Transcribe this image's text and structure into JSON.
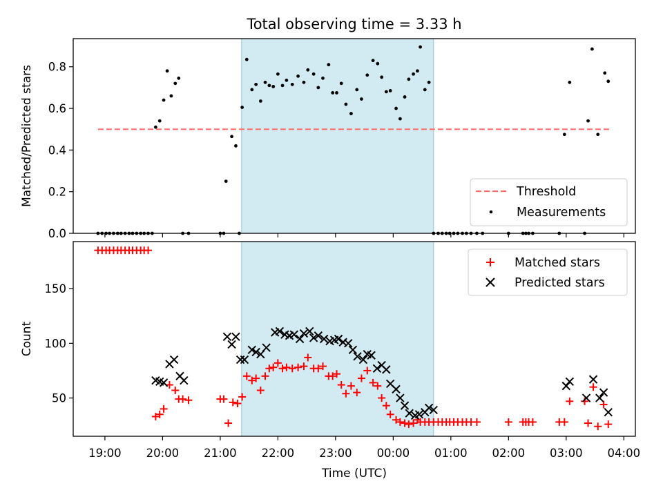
{
  "figure": {
    "title": "Total observing time = 3.33 h",
    "xlabel": "Time (UTC)"
  },
  "colors": {
    "shade": "#add8e6",
    "threshold": "#ff6b6b",
    "matched": "#ff0000",
    "predicted": "#000000",
    "measurement": "#000000"
  },
  "chart_data": [
    {
      "type": "scatter",
      "panel": "top",
      "ylabel": "Matched/Predicted stars",
      "xlim": [
        18.45,
        28.2
      ],
      "ylim": [
        0,
        0.935
      ],
      "x_ticks": [
        19,
        20,
        21,
        22,
        23,
        24,
        25,
        26,
        27,
        28
      ],
      "x_ticklabels": [
        "19:00",
        "20:00",
        "21:00",
        "22:00",
        "23:00",
        "00:00",
        "01:00",
        "02:00",
        "03:00",
        "04:00"
      ],
      "y_ticks": [
        0.0,
        0.2,
        0.4,
        0.6,
        0.8
      ],
      "y_ticklabels": [
        "0.0",
        "0.2",
        "0.4",
        "0.6",
        "0.8"
      ],
      "shaded_span": [
        21.37,
        24.7
      ],
      "threshold": {
        "name": "Threshold",
        "y": 0.5,
        "x_range": [
          18.88,
          27.75
        ]
      },
      "legend": {
        "location": "lower right",
        "entries": [
          "Threshold",
          "Measurements"
        ]
      },
      "series": [
        {
          "name": "Measurements",
          "x": [
            18.88,
            18.95,
            19.02,
            19.08,
            19.15,
            19.22,
            19.28,
            19.35,
            19.42,
            19.48,
            19.55,
            19.62,
            19.68,
            19.75,
            19.82,
            19.88,
            19.95,
            20.02,
            20.08,
            20.15,
            20.22,
            20.28,
            20.35,
            20.45,
            21.0,
            21.06,
            21.1,
            21.2,
            21.27,
            21.33,
            21.38,
            21.46,
            21.55,
            21.62,
            21.7,
            21.78,
            21.85,
            21.92,
            22.0,
            22.08,
            22.15,
            22.25,
            22.35,
            22.45,
            22.52,
            22.62,
            22.7,
            22.78,
            22.88,
            22.95,
            23.02,
            23.1,
            23.18,
            23.27,
            23.37,
            23.45,
            23.55,
            23.65,
            23.73,
            23.8,
            23.88,
            23.95,
            24.05,
            24.12,
            24.2,
            24.27,
            24.35,
            24.42,
            24.47,
            24.55,
            24.62,
            24.7,
            24.78,
            24.85,
            24.92,
            24.98,
            25.05,
            25.12,
            25.2,
            25.27,
            25.35,
            25.45,
            25.55,
            26.0,
            26.25,
            26.3,
            26.35,
            26.42,
            26.88,
            26.97,
            27.06,
            27.32,
            27.38,
            27.45,
            27.55,
            27.67,
            27.73
          ],
          "y": [
            0,
            0,
            0,
            0,
            0,
            0,
            0,
            0,
            0,
            0,
            0,
            0,
            0,
            0,
            0,
            0.51,
            0.54,
            0.64,
            0.78,
            0.66,
            0.72,
            0.745,
            0,
            0,
            0,
            0,
            0.25,
            0.465,
            0.42,
            0,
            0.605,
            0.835,
            0.69,
            0.715,
            0.635,
            0.725,
            0.71,
            0.705,
            0.765,
            0.71,
            0.735,
            0.715,
            0.755,
            0.725,
            0.785,
            0.765,
            0.7,
            0.745,
            0.81,
            0.675,
            0.675,
            0.72,
            0.62,
            0.575,
            0.69,
            0.645,
            0.76,
            0.83,
            0.815,
            0.75,
            0.68,
            0.685,
            0.6,
            0.55,
            0.655,
            0.74,
            0.765,
            0.78,
            0.895,
            0.69,
            0.725,
            0,
            0,
            0,
            0,
            0,
            0,
            0,
            0,
            0,
            0,
            0,
            0,
            0,
            0,
            0,
            0,
            0,
            0,
            0.475,
            0.725,
            0,
            0.54,
            0.885,
            0.475,
            0.77,
            0.73
          ]
        }
      ]
    },
    {
      "type": "scatter",
      "panel": "bottom",
      "ylabel": "Count",
      "xlim": [
        18.45,
        28.2
      ],
      "ylim": [
        15,
        193
      ],
      "x_ticks": [
        19,
        20,
        21,
        22,
        23,
        24,
        25,
        26,
        27,
        28
      ],
      "x_ticklabels": [
        "19:00",
        "20:00",
        "21:00",
        "22:00",
        "23:00",
        "00:00",
        "01:00",
        "02:00",
        "03:00",
        "04:00"
      ],
      "y_ticks": [
        50,
        100,
        150
      ],
      "y_ticklabels": [
        "50",
        "100",
        "150"
      ],
      "shaded_span": [
        21.37,
        24.7
      ],
      "legend": {
        "location": "upper right",
        "entries": [
          "Matched stars",
          "Predicted stars"
        ]
      },
      "series": [
        {
          "name": "Matched stars",
          "marker": "+",
          "x": [
            18.88,
            18.95,
            19.02,
            19.08,
            19.15,
            19.22,
            19.28,
            19.35,
            19.42,
            19.48,
            19.55,
            19.62,
            19.68,
            19.75,
            19.88,
            19.95,
            20.02,
            20.12,
            20.22,
            20.28,
            20.35,
            20.45,
            21.0,
            21.06,
            21.14,
            21.22,
            21.3,
            21.38,
            21.46,
            21.55,
            21.62,
            21.7,
            21.78,
            21.85,
            21.92,
            22.0,
            22.08,
            22.15,
            22.25,
            22.35,
            22.45,
            22.52,
            22.62,
            22.7,
            22.78,
            22.88,
            22.95,
            23.02,
            23.1,
            23.18,
            23.27,
            23.37,
            23.45,
            23.55,
            23.65,
            23.73,
            23.8,
            23.88,
            23.95,
            24.05,
            24.12,
            24.2,
            24.27,
            24.35,
            24.42,
            24.47,
            24.55,
            24.62,
            24.7,
            24.78,
            24.85,
            24.92,
            24.98,
            25.05,
            25.12,
            25.2,
            25.27,
            25.35,
            25.45,
            26.0,
            26.25,
            26.3,
            26.35,
            26.42,
            26.88,
            26.97,
            27.06,
            27.32,
            27.38,
            27.47,
            27.55,
            27.65,
            27.73
          ],
          "y": [
            185,
            185,
            185,
            185,
            185,
            185,
            185,
            185,
            185,
            185,
            185,
            185,
            185,
            185,
            33,
            35,
            40,
            62,
            57,
            49,
            49,
            48,
            49,
            49,
            27,
            46,
            45,
            51,
            70,
            66,
            68,
            57,
            70,
            77,
            78,
            82,
            77,
            78,
            77,
            78,
            79,
            87,
            77,
            77,
            79,
            70,
            70,
            72,
            62,
            54,
            61,
            55,
            68,
            75,
            64,
            61,
            50,
            43,
            35,
            30,
            28,
            27,
            26,
            27,
            30,
            28,
            28,
            28,
            28,
            28,
            28,
            28,
            28,
            28,
            28,
            28,
            28,
            28,
            28,
            28,
            28,
            28,
            28,
            28,
            28,
            28,
            47,
            47,
            27,
            60,
            24,
            44,
            26
          ]
        },
        {
          "name": "Predicted stars",
          "marker": "x",
          "x": [
            19.88,
            19.95,
            20.02,
            20.12,
            20.2,
            20.3,
            20.37,
            21.12,
            21.2,
            21.27,
            21.35,
            21.42,
            21.55,
            21.62,
            21.7,
            21.8,
            21.95,
            22.03,
            22.12,
            22.2,
            22.28,
            22.38,
            22.45,
            22.55,
            22.62,
            22.7,
            22.8,
            22.9,
            22.98,
            23.05,
            23.13,
            23.22,
            23.3,
            23.38,
            23.48,
            23.55,
            23.62,
            23.72,
            23.8,
            23.88,
            23.95,
            24.05,
            24.12,
            24.2,
            24.28,
            24.38,
            24.45,
            24.55,
            24.62,
            24.7,
            27.0,
            27.06,
            27.35,
            27.47,
            27.58,
            27.65,
            27.73
          ],
          "y": [
            66,
            65,
            64,
            81,
            85,
            70,
            66,
            106,
            99,
            106,
            85,
            85,
            94,
            92,
            90,
            96,
            110,
            111,
            108,
            107,
            108,
            104,
            109,
            111,
            105,
            107,
            104,
            102,
            103,
            104,
            101,
            100,
            94,
            88,
            85,
            90,
            89,
            77,
            80,
            76,
            63,
            58,
            50,
            43,
            36,
            34,
            35,
            37,
            41,
            39,
            61,
            65,
            50,
            67,
            50,
            55,
            37
          ]
        }
      ]
    }
  ]
}
